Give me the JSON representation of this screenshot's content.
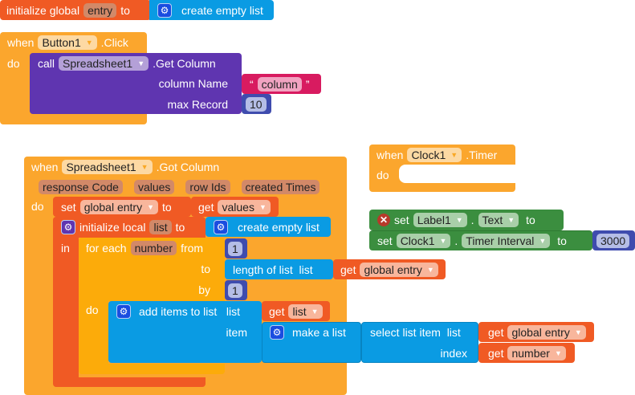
{
  "init_global": {
    "label": "initialize global",
    "var": "entry",
    "to": "to",
    "value": "create empty list",
    "icon": "gear-icon"
  },
  "button_event": {
    "when": "when",
    "component": "Button1",
    "event": ".Click",
    "do": "do",
    "call": "call",
    "target": "Spreadsheet1",
    "method": ".Get Column",
    "arg1_label": "column Name",
    "arg1_open": "“",
    "arg1_value": "column",
    "arg1_close": "”",
    "arg2_label": "max Record",
    "arg2_value": "10"
  },
  "got_column": {
    "when": "when",
    "component": "Spreadsheet1",
    "event": ".Got Column",
    "params": [
      "response Code",
      "values",
      "row Ids",
      "created Times"
    ],
    "do": "do",
    "set": "set",
    "set_var": "global entry",
    "to": "to",
    "get": "get",
    "get_var": "values",
    "init_local": "initialize local",
    "local_var": "list",
    "local_to": "to",
    "local_value": "create empty list",
    "in": "in",
    "for_each": "for each",
    "loop_var": "number",
    "from": "from",
    "from_value": "1",
    "to_label": "to",
    "length_of_list": "length of list  list",
    "length_get": "get",
    "length_var": "global entry",
    "by": "by",
    "by_value": "1",
    "loop_do": "do",
    "add_items": "add items to list   list",
    "add_get": "get",
    "add_var": "list",
    "item": "item",
    "make_list": "make a list",
    "select_item": "select list item  list",
    "sel_get": "get",
    "sel_var": "global entry",
    "index": "index",
    "idx_get": "get",
    "idx_var": "number"
  },
  "clock_event": {
    "when": "when",
    "component": "Clock1",
    "event": ".Timer",
    "do": "do"
  },
  "set_label": {
    "set": "set",
    "component": "Label1",
    "dot": ".",
    "property": "Text",
    "to": "to",
    "icon": "error-icon"
  },
  "set_clock": {
    "set": "set",
    "component": "Clock1",
    "dot": ".",
    "property": "Timer Interval",
    "to": "to",
    "value": "3000"
  },
  "colors": {
    "variable": "#f05a24",
    "event": "#fba62d",
    "procedure": "#5f35b0",
    "list": "#0a9be3",
    "math": "#3f4cae",
    "text": "#d81b60",
    "component_set": "#3b8e3f",
    "control": "#fcab0a"
  }
}
